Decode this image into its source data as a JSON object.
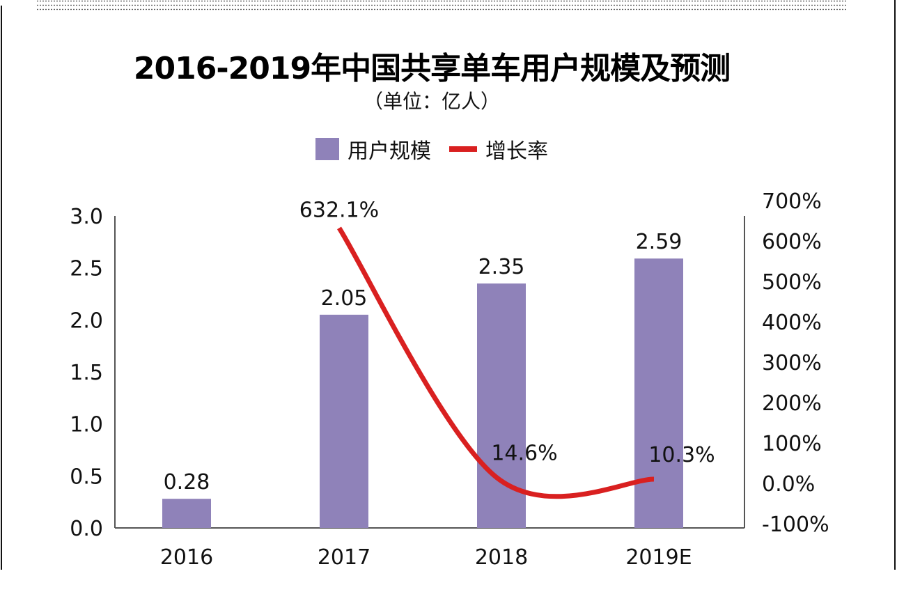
{
  "header": {
    "title": "2016-2019年中国共享单车用户规模及预测",
    "subtitle": "（单位：亿人）"
  },
  "legend": {
    "bar_label": "用户规模",
    "line_label": "增长率"
  },
  "colors": {
    "bar": "#8f82b9",
    "line": "#d92020",
    "axis": "#555555"
  },
  "chart_data": {
    "type": "bar",
    "title": "2016-2019年中国共享单车用户规模及预测",
    "subtitle": "（单位：亿人）",
    "categories": [
      "2016",
      "2017",
      "2018",
      "2019E"
    ],
    "series": [
      {
        "name": "用户规模",
        "type": "bar",
        "axis": "left",
        "values": [
          0.28,
          2.05,
          2.35,
          2.59
        ],
        "labels": [
          "0.28",
          "2.05",
          "2.35",
          "2.59"
        ]
      },
      {
        "name": "增长率",
        "type": "line",
        "axis": "right",
        "values": [
          null,
          632.1,
          14.6,
          10.3
        ],
        "labels": [
          "",
          "632.1%",
          "14.6%",
          "10.3%"
        ]
      }
    ],
    "left_axis": {
      "ylim": [
        0,
        3.0
      ],
      "ticks": [
        0.0,
        0.5,
        1.0,
        1.5,
        2.0,
        2.5,
        3.0
      ],
      "tick_labels": [
        "0.0",
        "0.5",
        "1.0",
        "1.5",
        "2.0",
        "2.5",
        "3.0"
      ]
    },
    "right_axis": {
      "ylim": [
        -100,
        700
      ],
      "ticks": [
        -100,
        0,
        100,
        200,
        300,
        400,
        500,
        600,
        700
      ],
      "tick_labels": [
        "-100%",
        "0.0%",
        "100%",
        "200%",
        "300%",
        "400%",
        "500%",
        "600%",
        "700%"
      ]
    },
    "xlabel": "",
    "ylabel": "",
    "grid": false,
    "legend_position": "top-center"
  }
}
